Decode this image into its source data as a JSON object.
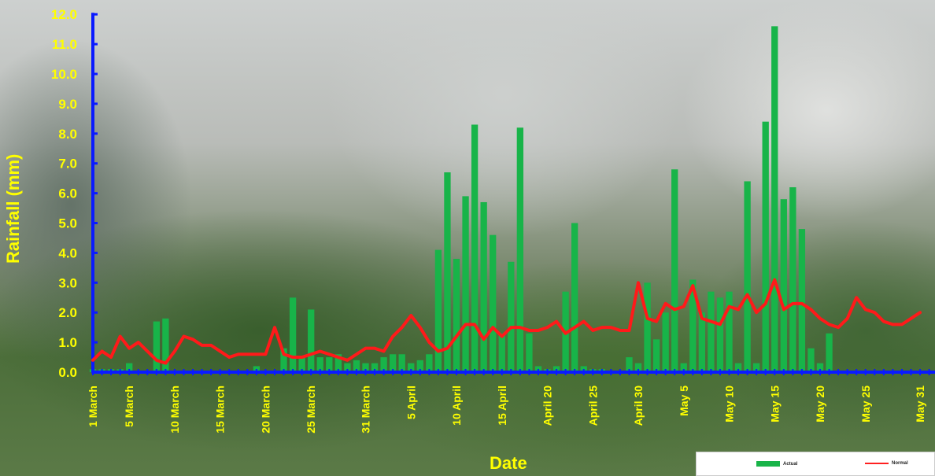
{
  "chart_data": {
    "type": "bar",
    "ylabel": "Rainfall (mm)",
    "xlabel": "Date",
    "ylim": [
      0,
      12
    ],
    "yticks": [
      "0.0",
      "1.0",
      "2.0",
      "3.0",
      "4.0",
      "5.0",
      "6.0",
      "7.0",
      "8.0",
      "9.0",
      "10.0",
      "11.0",
      "12.0"
    ],
    "xticks": [
      {
        "label": "1 March",
        "day": 1
      },
      {
        "label": "5 March",
        "day": 5
      },
      {
        "label": "10 March",
        "day": 10
      },
      {
        "label": "15 March",
        "day": 15
      },
      {
        "label": "20 March",
        "day": 20
      },
      {
        "label": "25 March",
        "day": 25
      },
      {
        "label": "31 March",
        "day": 31
      },
      {
        "label": "5 April",
        "day": 36
      },
      {
        "label": "10 April",
        "day": 41
      },
      {
        "label": "15 April",
        "day": 46
      },
      {
        "label": "April 20",
        "day": 51
      },
      {
        "label": "April 25",
        "day": 56
      },
      {
        "label": "April 30",
        "day": 61
      },
      {
        "label": "May 5",
        "day": 66
      },
      {
        "label": "May 10",
        "day": 71
      },
      {
        "label": "May 15",
        "day": 76
      },
      {
        "label": "May 20",
        "day": 81
      },
      {
        "label": "May 25",
        "day": 86
      },
      {
        "label": "May 31",
        "day": 92
      }
    ],
    "grid": false,
    "legend_position": "bottom-right",
    "series": [
      {
        "name": "Actual",
        "type": "bar",
        "color": "#18b449",
        "values": [
          0.1,
          0.1,
          0.1,
          0.1,
          0.3,
          0,
          0,
          1.7,
          1.8,
          0,
          0,
          0,
          0,
          0,
          0,
          0,
          0,
          0,
          0.2,
          0,
          0,
          0.8,
          2.5,
          0.5,
          2.1,
          0.5,
          0.5,
          0.6,
          0.3,
          0.4,
          0.3,
          0.3,
          0.5,
          0.6,
          0.6,
          0.3,
          0.4,
          0.6,
          4.1,
          6.7,
          3.8,
          5.9,
          8.3,
          5.7,
          4.6,
          1.3,
          3.7,
          8.2,
          1.3,
          0.2,
          0.1,
          0.2,
          2.7,
          5.0,
          0.2,
          0.1,
          0.1,
          0,
          0,
          0.5,
          0.3,
          3.0,
          1.1,
          2.0,
          6.8,
          0.3,
          3.1,
          2.0,
          2.7,
          2.5,
          2.7,
          0.3,
          6.4,
          0.3,
          8.4,
          11.6,
          5.8,
          6.2,
          4.8,
          0.8,
          0.3,
          1.3,
          0,
          0,
          0,
          0,
          0,
          0,
          0,
          0,
          0,
          0
        ]
      },
      {
        "name": "Normal",
        "type": "line",
        "color": "#ff1a1a",
        "values": [
          0.4,
          0.7,
          0.5,
          1.2,
          0.8,
          1.0,
          0.7,
          0.4,
          0.3,
          0.7,
          1.2,
          1.1,
          0.9,
          0.9,
          0.7,
          0.5,
          0.6,
          0.6,
          0.6,
          0.6,
          1.5,
          0.6,
          0.5,
          0.5,
          0.6,
          0.7,
          0.6,
          0.5,
          0.4,
          0.6,
          0.8,
          0.8,
          0.7,
          1.2,
          1.5,
          1.9,
          1.5,
          1.0,
          0.7,
          0.8,
          1.2,
          1.6,
          1.6,
          1.1,
          1.5,
          1.2,
          1.5,
          1.5,
          1.4,
          1.4,
          1.5,
          1.7,
          1.3,
          1.5,
          1.7,
          1.4,
          1.5,
          1.5,
          1.4,
          1.4,
          3.0,
          1.8,
          1.7,
          2.3,
          2.1,
          2.2,
          2.9,
          1.8,
          1.7,
          1.6,
          2.2,
          2.1,
          2.6,
          2.0,
          2.3,
          3.1,
          2.1,
          2.3,
          2.3,
          2.1,
          1.8,
          1.6,
          1.5,
          1.8,
          2.5,
          2.1,
          2.0,
          1.7,
          1.6,
          1.6,
          1.8,
          2.0
        ]
      }
    ]
  }
}
